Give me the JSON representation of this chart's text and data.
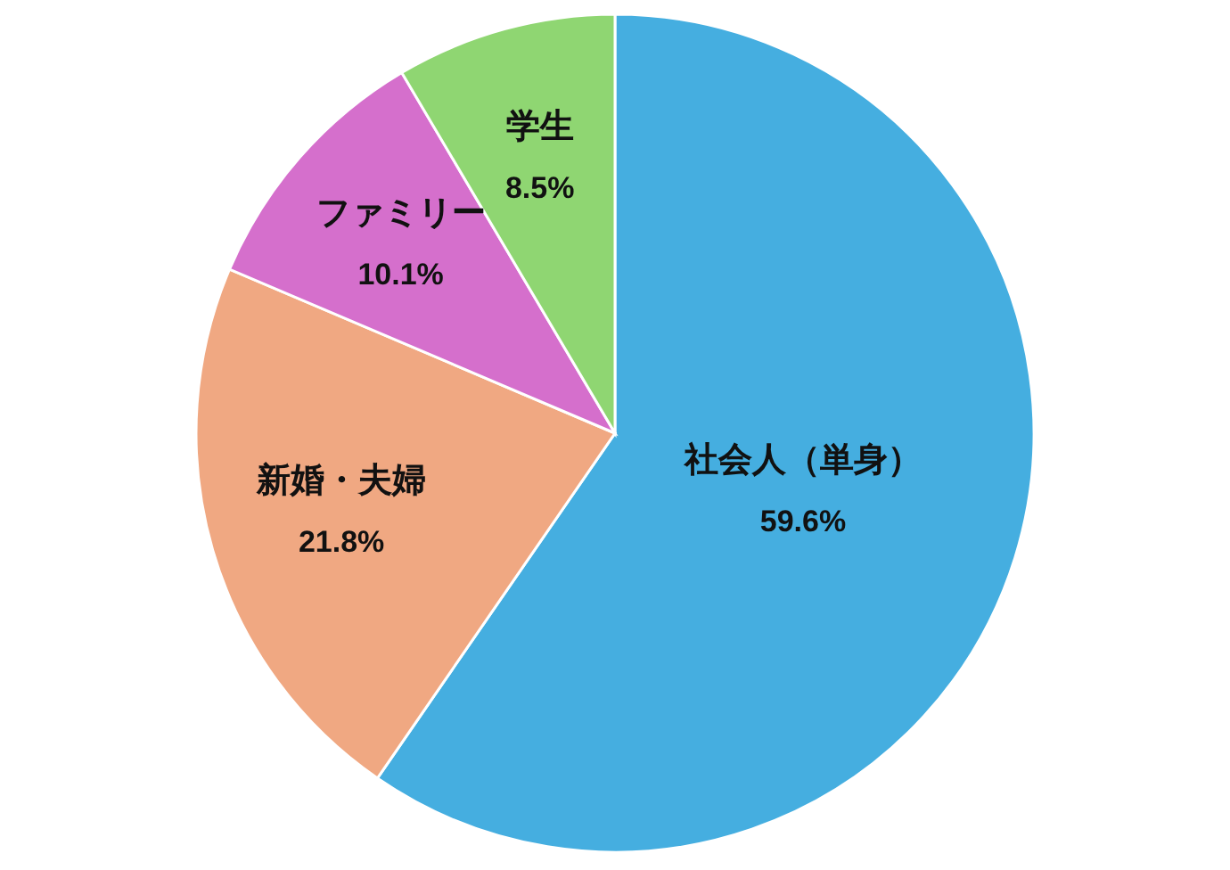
{
  "chart_data": {
    "type": "pie",
    "categories": [
      "社会人（単身）",
      "新婚・夫婦",
      "ファミリー",
      "学生"
    ],
    "values": [
      59.6,
      21.8,
      10.1,
      8.5
    ],
    "value_labels": [
      "59.6%",
      "21.8%",
      "10.1%",
      "8.5%"
    ],
    "colors": [
      "#45aee0",
      "#f0a882",
      "#d56fcc",
      "#8fd672"
    ]
  }
}
